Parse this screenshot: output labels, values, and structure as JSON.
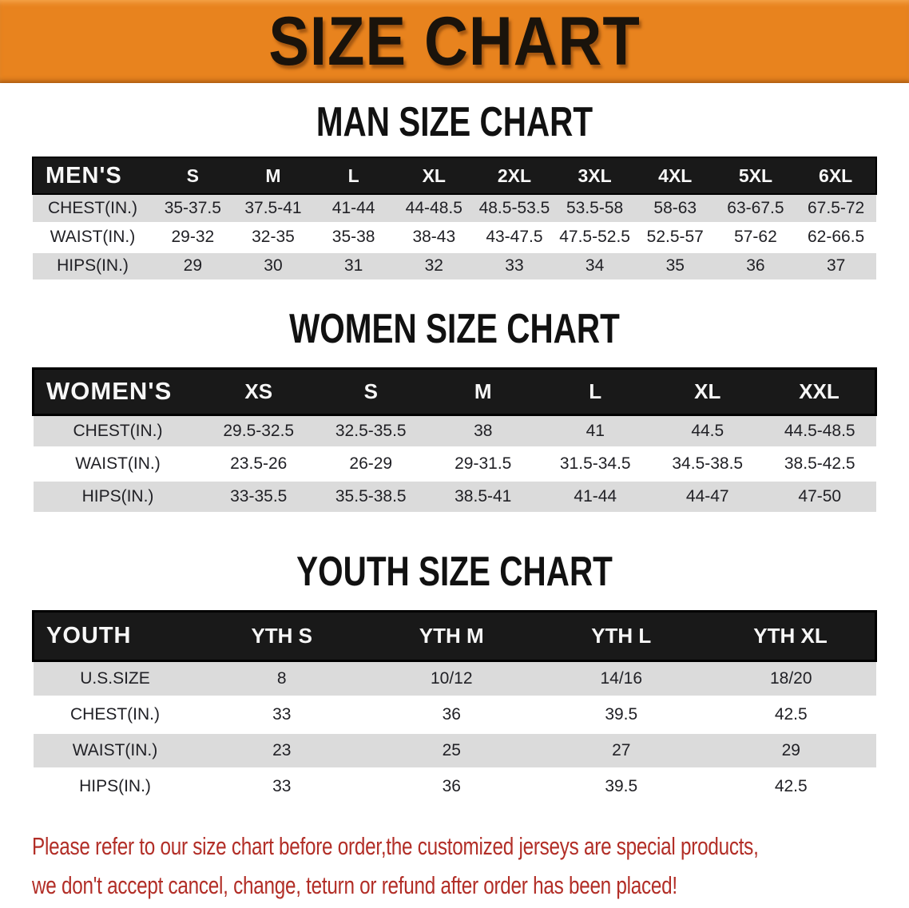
{
  "banner": {
    "title": "SIZE CHART"
  },
  "colors": {
    "banner_bg": "#E8831E",
    "banner_text": "#1A130B",
    "band_bg": "#191919",
    "band_text": "#F7F7F7",
    "row_alt": "#DBDBDB",
    "body_text": "#212126",
    "heading": "#111111",
    "disclaimer": "#B22E27"
  },
  "sections": [
    {
      "id": "men",
      "heading": "MAN SIZE CHART",
      "table": {
        "header_label": "MEN'S",
        "columns": [
          "S",
          "M",
          "L",
          "XL",
          "2XL",
          "3XL",
          "4XL",
          "5XL",
          "6XL"
        ],
        "rows": [
          {
            "label": "CHEST(IN.)",
            "values": [
              "35-37.5",
              "37.5-41",
              "41-44",
              "44-48.5",
              "48.5-53.5",
              "53.5-58",
              "58-63",
              "63-67.5",
              "67.5-72"
            ]
          },
          {
            "label": "WAIST(IN.)",
            "values": [
              "29-32",
              "32-35",
              "35-38",
              "38-43",
              "43-47.5",
              "47.5-52.5",
              "52.5-57",
              "57-62",
              "62-66.5"
            ]
          },
          {
            "label": "HIPS(IN.)",
            "values": [
              "29",
              "30",
              "31",
              "32",
              "33",
              "34",
              "35",
              "36",
              "37"
            ]
          }
        ]
      }
    },
    {
      "id": "women",
      "heading": "WOMEN SIZE CHART",
      "table": {
        "header_label": "WOMEN'S",
        "columns": [
          "XS",
          "S",
          "M",
          "L",
          "XL",
          "XXL"
        ],
        "rows": [
          {
            "label": "CHEST(IN.)",
            "values": [
              "29.5-32.5",
              "32.5-35.5",
              "38",
              "41",
              "44.5",
              "44.5-48.5"
            ]
          },
          {
            "label": "WAIST(IN.)",
            "values": [
              "23.5-26",
              "26-29",
              "29-31.5",
              "31.5-34.5",
              "34.5-38.5",
              "38.5-42.5"
            ]
          },
          {
            "label": "HIPS(IN.)",
            "values": [
              "33-35.5",
              "35.5-38.5",
              "38.5-41",
              "41-44",
              "44-47",
              "47-50"
            ]
          }
        ]
      }
    },
    {
      "id": "youth",
      "heading": "YOUTH SIZE CHART",
      "table": {
        "header_label": "YOUTH",
        "columns": [
          "YTH S",
          "YTH M",
          "YTH L",
          "YTH XL"
        ],
        "rows": [
          {
            "label": "U.S.SIZE",
            "values": [
              "8",
              "10/12",
              "14/16",
              "18/20"
            ]
          },
          {
            "label": "CHEST(IN.)",
            "values": [
              "33",
              "36",
              "39.5",
              "42.5"
            ]
          },
          {
            "label": "WAIST(IN.)",
            "values": [
              "23",
              "25",
              "27",
              "29"
            ]
          },
          {
            "label": "HIPS(IN.)",
            "values": [
              "33",
              "36",
              "39.5",
              "42.5"
            ]
          }
        ]
      }
    }
  ],
  "disclaimer": {
    "line1": "Please refer to our size chart before order,the customized jerseys are special products,",
    "line2": "we don't accept cancel, change, teturn or refund after order has been placed!"
  }
}
